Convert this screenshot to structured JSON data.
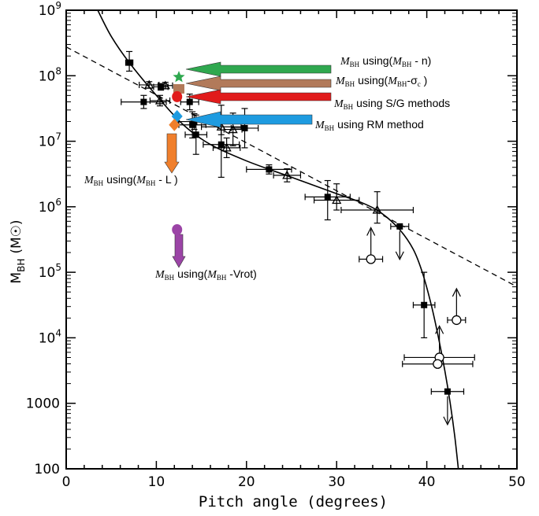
{
  "chart_data": {
    "type": "scatter",
    "xlabel": "Pitch angle (degrees)",
    "ylabel_main": "M",
    "ylabel_sub": "BH",
    "ylabel_unit": "(M☉)",
    "xlim": [
      0,
      50
    ],
    "ylim_log10": [
      2,
      9
    ],
    "y_scale": "log",
    "x_ticks": [
      0,
      10,
      20,
      30,
      40,
      50
    ],
    "y_ticks": [
      {
        "exp": 2,
        "label": "100"
      },
      {
        "exp": 3,
        "label": "1000"
      },
      {
        "exp": 4,
        "label": "10",
        "sup": "4"
      },
      {
        "exp": 5,
        "label": "10",
        "sup": "5"
      },
      {
        "exp": 6,
        "label": "10",
        "sup": "6"
      },
      {
        "exp": 7,
        "label": "10",
        "sup": "7"
      },
      {
        "exp": 8,
        "label": "10",
        "sup": "8"
      },
      {
        "exp": 9,
        "label": "10",
        "sup": "9"
      }
    ],
    "grid": false,
    "points": [
      {
        "x": 7.0,
        "y": 8.2,
        "m": "square",
        "xe": 0.4,
        "yl": 0.13,
        "yh": 0.17
      },
      {
        "x": 8.6,
        "y": 7.6,
        "m": "square",
        "xe": 2.5,
        "yl": 0.1,
        "yh": 0.1
      },
      {
        "x": 9.2,
        "y": 7.86,
        "m": "triangle",
        "xe": 1.1,
        "yl": 0.05,
        "yh": 0.05
      },
      {
        "x": 10.4,
        "y": 7.62,
        "m": "triangle",
        "xe": 1.1,
        "yl": 0.08,
        "yh": 0.08
      },
      {
        "x": 10.5,
        "y": 7.83,
        "m": "square",
        "xe": 0.8,
        "yl": 0.05,
        "yh": 0.05
      },
      {
        "x": 11.0,
        "y": 7.85,
        "m": "triangle",
        "xe": 0.8,
        "yl": 0.05,
        "yh": 0.05
      },
      {
        "x": 13.7,
        "y": 7.6,
        "m": "square",
        "xe": 1.0,
        "yl": 0.12,
        "yh": 0.12
      },
      {
        "x": 14.0,
        "y": 7.25,
        "m": "square",
        "xe": 1.5,
        "yl": 0.2,
        "yh": 0.2
      },
      {
        "x": 14.2,
        "y": 7.3,
        "m": "square",
        "xe": 1.8,
        "yl": 0.12,
        "yh": 0.12
      },
      {
        "x": 14.4,
        "y": 7.1,
        "m": "square",
        "xe": 1.2,
        "yl": 0.3,
        "yh": 0.3
      },
      {
        "x": 17.2,
        "y": 7.22,
        "m": "triangle",
        "xe": 2.2,
        "yl": 0.12,
        "yh": 0.12
      },
      {
        "x": 17.2,
        "y": 6.95,
        "m": "square",
        "xe": 2.0,
        "yl": 0.5,
        "yh": 0.6
      },
      {
        "x": 17.8,
        "y": 6.9,
        "m": "triangle",
        "xe": 1.5,
        "yl": 0.15,
        "yh": 0.15
      },
      {
        "x": 18.5,
        "y": 7.18,
        "m": "triangle",
        "xe": 1.0,
        "yl": 0.25,
        "yh": 0.25
      },
      {
        "x": 19.8,
        "y": 7.2,
        "m": "square",
        "xe": 1.5,
        "yl": 0.3,
        "yh": 0.3
      },
      {
        "x": 22.5,
        "y": 6.57,
        "m": "square",
        "xe": 2.5,
        "yl": 0.07,
        "yh": 0.07
      },
      {
        "x": 24.5,
        "y": 6.48,
        "m": "triangle",
        "xe": 1.5,
        "yl": 0.1,
        "yh": 0.1
      },
      {
        "x": 29.0,
        "y": 6.15,
        "m": "square",
        "xe": 2.5,
        "yl": 0.35,
        "yh": 0.25
      },
      {
        "x": 30.0,
        "y": 6.1,
        "m": "triangle",
        "xe": 2.5,
        "yl": 0.15,
        "yh": 0.25
      },
      {
        "x": 34.5,
        "y": 5.95,
        "m": "triangle",
        "xe": 4.0,
        "yl": 0.2,
        "yh": 0.28
      },
      {
        "x": 37.0,
        "y": 5.7,
        "m": "square",
        "xe": 1.0,
        "yl": 0.0,
        "yh": 0.0,
        "down": true
      },
      {
        "x": 33.8,
        "y": 5.2,
        "m": "circle",
        "xe": 1.3,
        "yl": 0.0,
        "yh": 0.0,
        "up": true
      },
      {
        "x": 39.7,
        "y": 4.5,
        "m": "square",
        "xe": 1.2,
        "yl": 0.5,
        "yh": 0.5
      },
      {
        "x": 43.3,
        "y": 4.27,
        "m": "circle",
        "xe": 1.0,
        "yl": 0.0,
        "yh": 0.0,
        "up": true
      },
      {
        "x": 41.4,
        "y": 3.7,
        "m": "circle",
        "xe": 3.9,
        "yl": 0.0,
        "yh": 0.0,
        "up": true
      },
      {
        "x": 41.2,
        "y": 3.6,
        "m": "circle",
        "xe": 3.9,
        "yl": 0.0,
        "yh": 0.0
      },
      {
        "x": 42.3,
        "y": 3.18,
        "m": "square",
        "xe": 1.8,
        "yl": 0.0,
        "yh": 0.0,
        "down": true
      }
    ],
    "fit_line": [
      [
        0,
        8.44
      ],
      [
        50,
        4.78
      ]
    ],
    "fit_curve": [
      [
        3.5,
        9.0
      ],
      [
        5.0,
        8.6
      ],
      [
        7.0,
        8.2
      ],
      [
        10.0,
        7.7
      ],
      [
        13.0,
        7.25
      ],
      [
        16.0,
        6.95
      ],
      [
        20.0,
        6.7
      ],
      [
        25.0,
        6.45
      ],
      [
        30.0,
        6.2
      ],
      [
        33.0,
        6.05
      ],
      [
        35.0,
        5.9
      ],
      [
        37.0,
        5.65
      ],
      [
        38.5,
        5.35
      ],
      [
        39.5,
        5.0
      ],
      [
        40.5,
        4.5
      ],
      [
        41.3,
        4.0
      ],
      [
        42.0,
        3.5
      ],
      [
        42.6,
        3.0
      ],
      [
        43.1,
        2.5
      ],
      [
        43.5,
        2.0
      ]
    ],
    "annotations": [
      {
        "name": "n",
        "label_main": "M",
        "label_sub": "BH",
        "label_text": " using(",
        "label_rel_main": "M",
        "label_rel_sub": "BH",
        "label_rel_tail": " - n)",
        "color": "#2fa84f",
        "marker": "star",
        "mx": 12.5,
        "my": 7.98
      },
      {
        "name": "sigma",
        "label_main": "M",
        "label_sub": "BH",
        "label_text": " using(",
        "label_rel_main": "M",
        "label_rel_sub": "BH",
        "label_rel_tail": "-σ",
        "label_rel_tail_sub": "c",
        "label_close": " )",
        "color": "#b27a5a",
        "marker": "square",
        "mx": 12.5,
        "my": 7.8
      },
      {
        "name": "sg",
        "label_main": "M",
        "label_sub": "BH",
        "label_text": " using S/G methods",
        "color": "#e11b1b",
        "marker": "circle",
        "mx": 12.3,
        "my": 7.68
      },
      {
        "name": "rm",
        "label_main": "M",
        "label_sub": "BH",
        "label_text": " using RM method",
        "color": "#1e9be0",
        "marker": "diamond",
        "mx": 12.3,
        "my": 7.38
      },
      {
        "name": "L",
        "label_main": "M",
        "label_sub": "BH",
        "label_text": " using(",
        "label_rel_main": "M",
        "label_rel_sub": "BH",
        "label_rel_tail": " - L )",
        "color": "#f07f2c",
        "marker": "diamond",
        "mx": 12.0,
        "my": 7.25
      },
      {
        "name": "vrot",
        "label_main": "M",
        "label_sub": "BH",
        "label_text": " using(",
        "label_rel_main": "M",
        "label_rel_sub": "BH",
        "label_rel_tail": " -Vrot)",
        "color": "#9b44a6",
        "marker": "circle",
        "mx": 12.3,
        "my": 5.65
      }
    ]
  }
}
